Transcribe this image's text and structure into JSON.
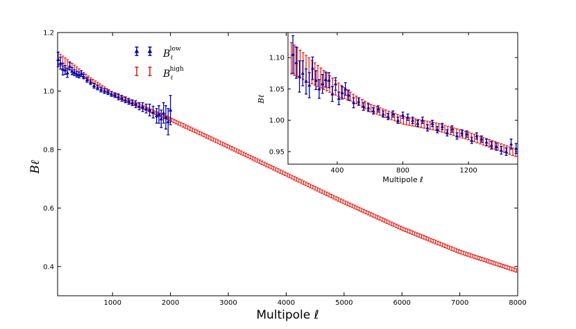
{
  "colors": {
    "low": "#0000aa",
    "high": "#e8140c",
    "axis": "#000000"
  },
  "chart_data": [
    {
      "type": "scatter",
      "name": "main",
      "xlabel": "Multipole ℓ",
      "ylabel": "Bℓ",
      "xlim": [
        50,
        8000
      ],
      "ylim": [
        0.3,
        1.2
      ],
      "xticks": [
        1000,
        2000,
        3000,
        4000,
        5000,
        6000,
        7000,
        8000
      ],
      "yticks": [
        0.4,
        0.6,
        0.8,
        1.0,
        1.2
      ],
      "xtick_labels": [
        "1000",
        "2000",
        "3000",
        "4000",
        "5000",
        "6000",
        "7000",
        "8000"
      ],
      "ytick_labels": [
        "0.4",
        "0.6",
        "0.8",
        "1.0",
        "1.2"
      ],
      "legend_position": "top-left",
      "series": [
        {
          "name": "Bℓ low",
          "label_base": "B",
          "label_sub": "ℓ",
          "label_sup": "low",
          "marker": "triangle-errorbar",
          "x": [
            60,
            100,
            140,
            180,
            220,
            260,
            300,
            340,
            380,
            420,
            460,
            500,
            560,
            620,
            680,
            740,
            800,
            860,
            920,
            980,
            1040,
            1100,
            1160,
            1220,
            1280,
            1340,
            1400,
            1460,
            1520,
            1580,
            1640,
            1700,
            1760,
            1800,
            1840,
            1880,
            1920,
            1960,
            2000
          ],
          "y": [
            1.108,
            1.095,
            1.075,
            1.072,
            1.062,
            1.085,
            1.068,
            1.063,
            1.058,
            1.055,
            1.06,
            1.05,
            1.038,
            1.03,
            1.018,
            1.012,
            1.005,
            1.0,
            0.996,
            0.99,
            0.986,
            0.98,
            0.975,
            0.97,
            0.965,
            0.96,
            0.955,
            0.948,
            0.945,
            0.94,
            0.935,
            0.928,
            0.915,
            0.92,
            0.905,
            0.925,
            0.91,
            0.895,
            0.935
          ],
          "yerr": [
            0.025,
            0.02,
            0.02,
            0.015,
            0.015,
            0.012,
            0.012,
            0.01,
            0.01,
            0.01,
            0.01,
            0.008,
            0.008,
            0.008,
            0.008,
            0.008,
            0.008,
            0.008,
            0.008,
            0.008,
            0.008,
            0.01,
            0.01,
            0.01,
            0.01,
            0.01,
            0.012,
            0.012,
            0.015,
            0.015,
            0.02,
            0.02,
            0.025,
            0.03,
            0.03,
            0.035,
            0.04,
            0.045,
            0.05
          ]
        },
        {
          "name": "Bℓ high",
          "label_base": "B",
          "label_sub": "ℓ",
          "label_sup": "high",
          "marker": "errorbar",
          "x_start": 60,
          "x_end": 8000,
          "x_step": 40,
          "model_x": [
            0,
            1000,
            2000,
            3000,
            4000,
            5000,
            6000,
            7000,
            8000
          ],
          "model_y": [
            1.12,
            0.99,
            0.903,
            0.81,
            0.715,
            0.62,
            0.53,
            0.45,
            0.385
          ],
          "err_low_x": 600,
          "err_low": 0.02,
          "err_high": 0.006
        }
      ]
    },
    {
      "type": "scatter",
      "name": "inset",
      "xlabel": "Multipole ℓ",
      "ylabel": "Bℓ",
      "xlim": [
        100,
        1500
      ],
      "ylim": [
        0.93,
        1.14
      ],
      "xticks": [
        400,
        800,
        1200
      ],
      "yticks": [
        0.95,
        1.0,
        1.05,
        1.1
      ],
      "xtick_labels": [
        "400",
        "800",
        "1200"
      ],
      "ytick_labels": [
        "0.95",
        "1.00",
        "1.05",
        "1.10"
      ],
      "series": [
        {
          "name": "Bℓ low",
          "marker": "triangle-errorbar",
          "x": [
            130,
            150,
            170,
            190,
            210,
            230,
            250,
            270,
            290,
            310,
            330,
            350,
            370,
            390,
            410,
            430,
            450,
            470,
            500,
            530,
            560,
            590,
            620,
            650,
            680,
            710,
            740,
            770,
            800,
            830,
            860,
            890,
            920,
            950,
            980,
            1010,
            1040,
            1070,
            1100,
            1130,
            1160,
            1190,
            1220,
            1250,
            1280,
            1310,
            1340,
            1370,
            1400,
            1430,
            1460,
            1490
          ],
          "y": [
            1.105,
            1.092,
            1.07,
            1.075,
            1.062,
            1.056,
            1.083,
            1.064,
            1.05,
            1.058,
            1.065,
            1.064,
            1.042,
            1.058,
            1.035,
            1.044,
            1.05,
            1.04,
            1.028,
            1.03,
            1.022,
            1.02,
            1.015,
            1.018,
            1.01,
            1.006,
            1.01,
            1.0,
            1.008,
            1.005,
            1.0,
            0.995,
            1.0,
            0.988,
            0.995,
            0.985,
            0.99,
            0.98,
            0.986,
            0.975,
            0.98,
            0.978,
            0.968,
            0.975,
            0.97,
            0.965,
            0.96,
            0.958,
            0.952,
            0.95,
            0.962,
            0.955
          ],
          "yerr": [
            0.03,
            0.025,
            0.025,
            0.02,
            0.02,
            0.02,
            0.018,
            0.015,
            0.015,
            0.015,
            0.012,
            0.012,
            0.012,
            0.01,
            0.01,
            0.01,
            0.01,
            0.008,
            0.008,
            0.006,
            0.006,
            0.006,
            0.005,
            0.005,
            0.005,
            0.005,
            0.005,
            0.005,
            0.005,
            0.005,
            0.005,
            0.005,
            0.005,
            0.005,
            0.005,
            0.005,
            0.005,
            0.005,
            0.005,
            0.005,
            0.005,
            0.005,
            0.005,
            0.005,
            0.005,
            0.005,
            0.006,
            0.006,
            0.006,
            0.006,
            0.008,
            0.008
          ]
        },
        {
          "name": "Bℓ high",
          "marker": "errorbar",
          "x_start": 120,
          "x_end": 1490,
          "x_step": 18,
          "model_x": [
            0,
            200,
            400,
            600,
            800,
            1000,
            1200,
            1500
          ],
          "model_y": [
            1.12,
            1.085,
            1.05,
            1.02,
            1.0,
            0.99,
            0.975,
            0.947
          ],
          "err_low_x": 500,
          "err_low": 0.025,
          "err_high": 0.006
        }
      ]
    }
  ]
}
